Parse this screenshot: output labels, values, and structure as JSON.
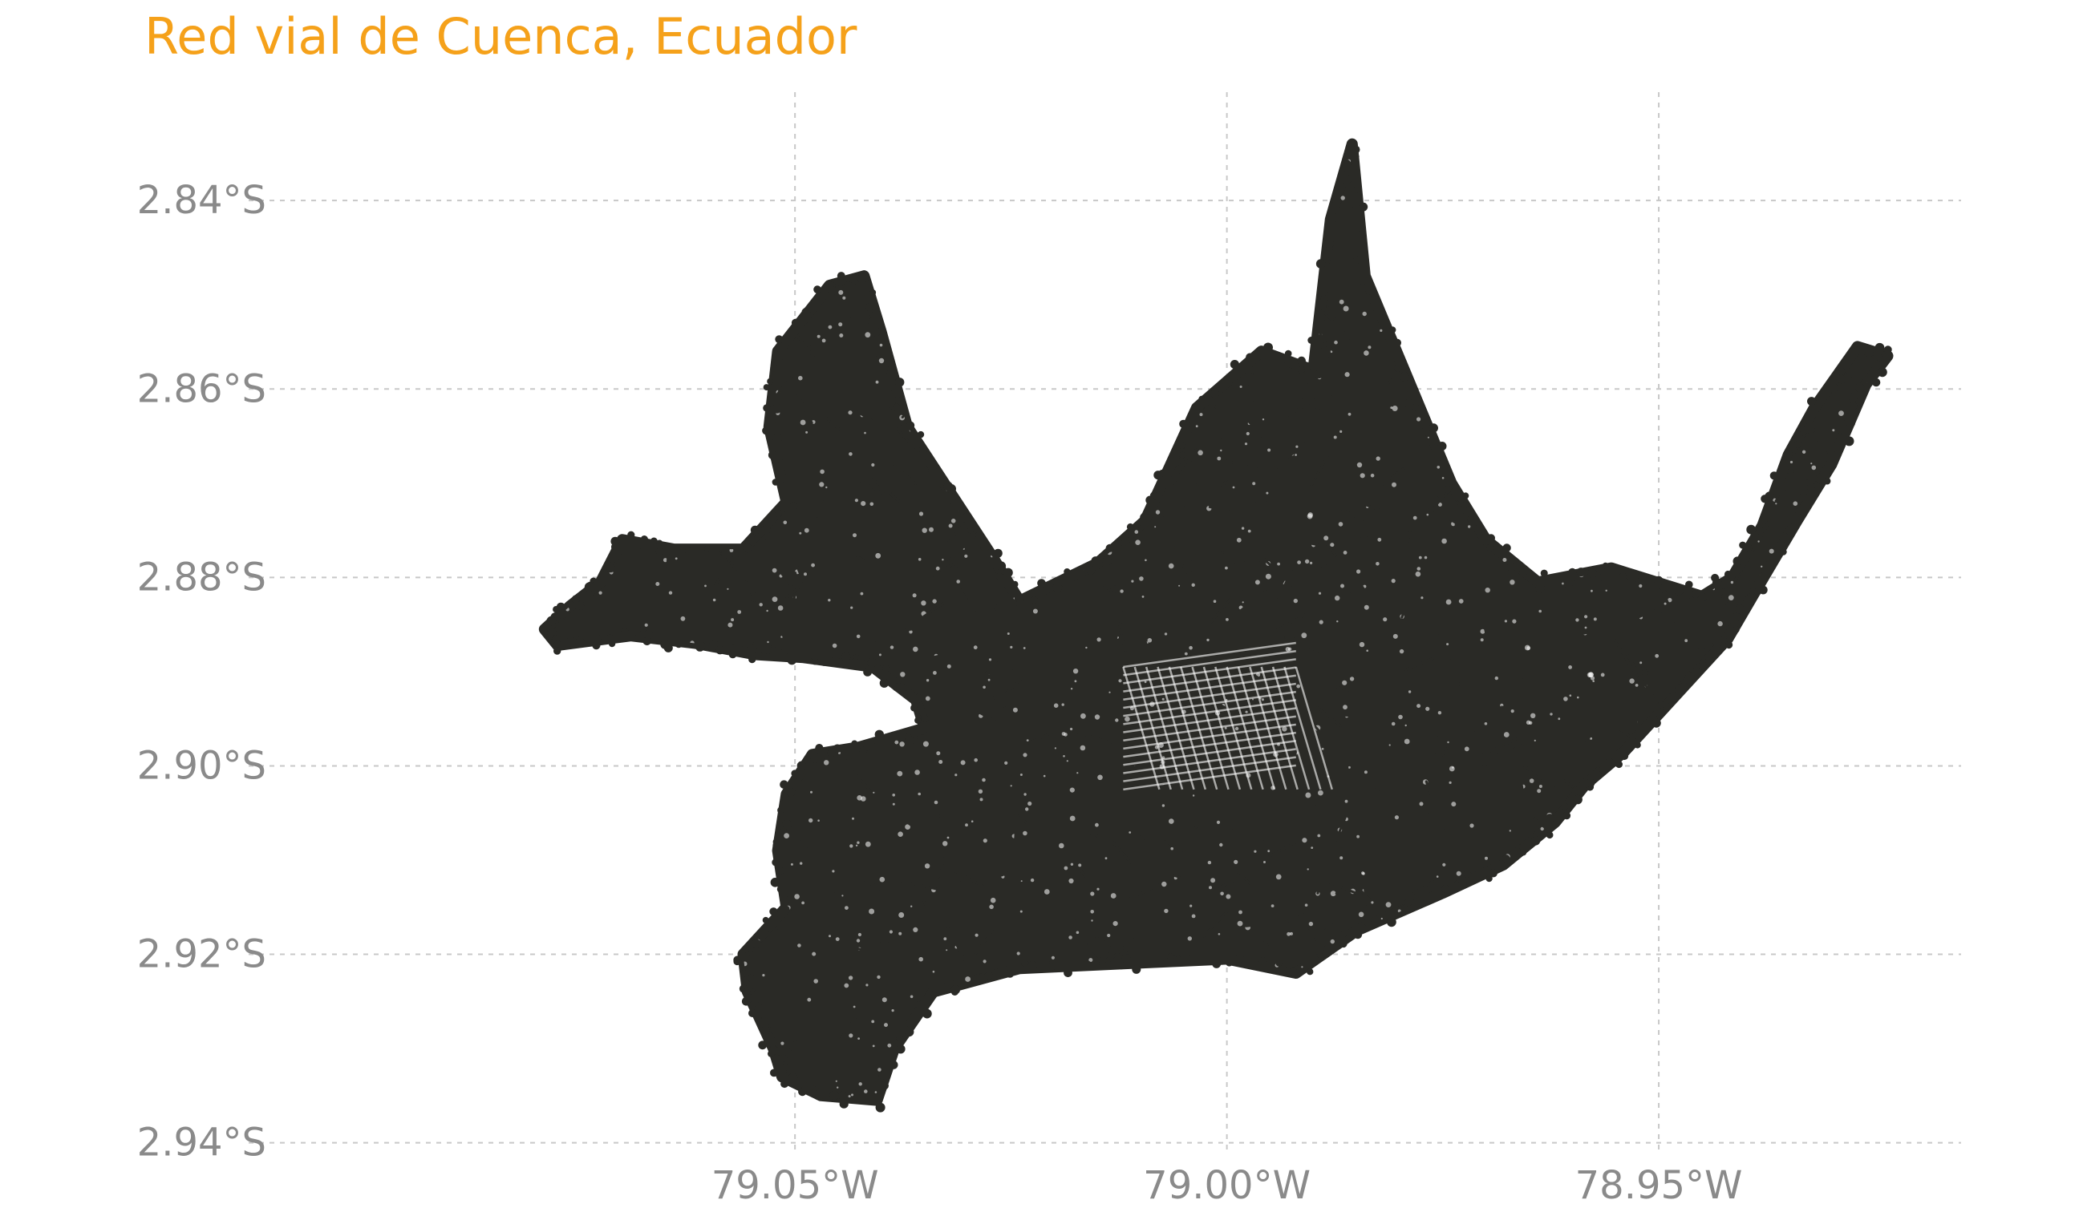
{
  "title": "Red vial de Cuenca, Ecuador",
  "colors": {
    "title": "#F5A11A",
    "tick_text": "#8A8A8A",
    "grid": "#C8C8C8",
    "network": "#2A2A26",
    "background": "#FFFFFF"
  },
  "axes": {
    "x": {
      "range": [
        -79.11,
        -78.915
      ],
      "ticks": [
        {
          "value": -79.05,
          "label": "79.05°W"
        },
        {
          "value": -79.0,
          "label": "79.00°W"
        },
        {
          "value": -78.95,
          "label": "78.95°W"
        }
      ]
    },
    "y": {
      "range": [
        -2.9425,
        -2.8285
      ],
      "ticks": [
        {
          "value": -2.84,
          "label": "2.84°S"
        },
        {
          "value": -2.86,
          "label": "2.86°S"
        },
        {
          "value": -2.88,
          "label": "2.88°S"
        },
        {
          "value": -2.9,
          "label": "2.90°S"
        },
        {
          "value": -2.92,
          "label": "2.92°S"
        },
        {
          "value": -2.94,
          "label": "2.94°S"
        }
      ]
    },
    "grid": true
  },
  "network_outline": [
    [
      -79.0725,
      -2.8805
    ],
    [
      -79.076,
      -2.883
    ],
    [
      -79.079,
      -2.8855
    ],
    [
      -79.0775,
      -2.8872
    ],
    [
      -79.069,
      -2.8862
    ],
    [
      -79.0615,
      -2.887
    ],
    [
      -79.0545,
      -2.8882
    ],
    [
      -79.049,
      -2.8885
    ],
    [
      -79.041,
      -2.8895
    ],
    [
      -79.036,
      -2.893
    ],
    [
      -79.035,
      -2.896
    ],
    [
      -79.0425,
      -2.898
    ],
    [
      -79.048,
      -2.8988
    ],
    [
      -79.051,
      -2.903
    ],
    [
      -79.052,
      -2.909
    ],
    [
      -79.051,
      -2.915
    ],
    [
      -79.056,
      -2.92
    ],
    [
      -79.0555,
      -2.924
    ],
    [
      -79.054,
      -2.927
    ],
    [
      -79.0525,
      -2.93
    ],
    [
      -79.0515,
      -2.933
    ],
    [
      -79.047,
      -2.935
    ],
    [
      -79.0405,
      -2.9355
    ],
    [
      -79.0385,
      -2.93
    ],
    [
      -79.034,
      -2.924
    ],
    [
      -79.024,
      -2.9215
    ],
    [
      -79.012,
      -2.921
    ],
    [
      -79.0,
      -2.9205
    ],
    [
      -78.992,
      -2.922
    ],
    [
      -78.985,
      -2.9175
    ],
    [
      -78.975,
      -2.9135
    ],
    [
      -78.968,
      -2.9105
    ],
    [
      -78.962,
      -2.906
    ],
    [
      -78.9585,
      -2.902
    ],
    [
      -78.954,
      -2.8985
    ],
    [
      -78.948,
      -2.8925
    ],
    [
      -78.942,
      -2.8865
    ],
    [
      -78.9385,
      -2.881
    ],
    [
      -78.934,
      -2.874
    ],
    [
      -78.93,
      -2.868
    ],
    [
      -78.926,
      -2.8595
    ],
    [
      -78.9235,
      -2.8565
    ],
    [
      -78.927,
      -2.8555
    ],
    [
      -78.932,
      -2.862
    ],
    [
      -78.935,
      -2.867
    ],
    [
      -78.938,
      -2.8745
    ],
    [
      -78.9415,
      -2.88
    ],
    [
      -78.945,
      -2.882
    ],
    [
      -78.9555,
      -2.879
    ],
    [
      -78.964,
      -2.8805
    ],
    [
      -78.97,
      -2.876
    ],
    [
      -78.974,
      -2.87
    ],
    [
      -78.979,
      -2.859
    ],
    [
      -78.984,
      -2.848
    ],
    [
      -78.9855,
      -2.834
    ],
    [
      -78.988,
      -2.842
    ],
    [
      -78.99,
      -2.858
    ],
    [
      -78.996,
      -2.856
    ],
    [
      -79.0035,
      -2.862
    ],
    [
      -79.007,
      -2.869
    ],
    [
      -79.0095,
      -2.874
    ],
    [
      -79.015,
      -2.8785
    ],
    [
      -79.024,
      -2.8825
    ],
    [
      -79.027,
      -2.878
    ],
    [
      -79.032,
      -2.871
    ],
    [
      -79.037,
      -2.864
    ],
    [
      -79.04,
      -2.854
    ],
    [
      -79.042,
      -2.848
    ],
    [
      -79.046,
      -2.849
    ],
    [
      -79.052,
      -2.856
    ],
    [
      -79.053,
      -2.864
    ],
    [
      -79.051,
      -2.872
    ],
    [
      -79.056,
      -2.877
    ],
    [
      -79.064,
      -2.877
    ],
    [
      -79.07,
      -2.876
    ],
    [
      -79.0725,
      -2.8805
    ]
  ]
}
